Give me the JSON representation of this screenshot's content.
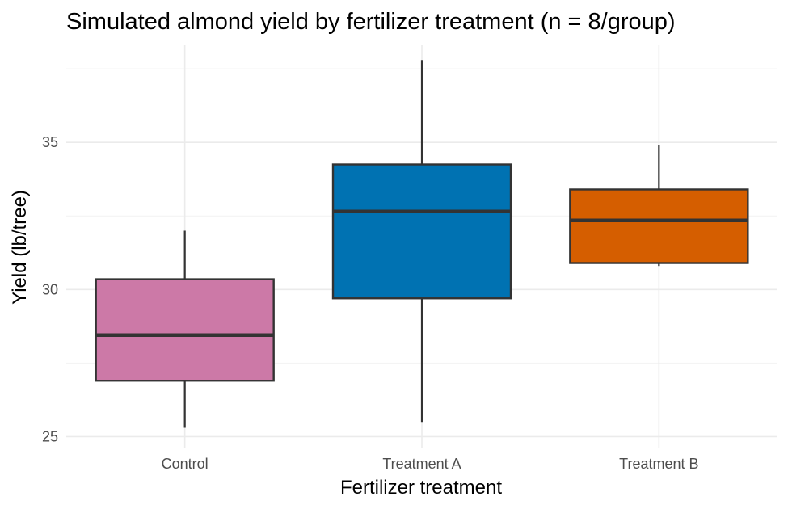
{
  "chart_data": {
    "type": "boxplot",
    "title": "Simulated almond yield by fertilizer treatment (n = 8/group)",
    "xlabel": "Fertilizer treatment",
    "ylabel": "Yield (lb/tree)",
    "ylim": [
      24.6,
      38.3
    ],
    "y_ticks": [
      25,
      30,
      35
    ],
    "y_minor_ticks": [
      27.5,
      32.5,
      37.5
    ],
    "grid": true,
    "legend": "none",
    "categories": [
      "Control",
      "Treatment A",
      "Treatment B"
    ],
    "boxes": [
      {
        "category": "Control",
        "whisker_low": 25.3,
        "q1": 26.9,
        "median": 28.45,
        "q3": 30.35,
        "whisker_high": 32.0,
        "color": "#CC79A7"
      },
      {
        "category": "Treatment A",
        "whisker_low": 25.5,
        "q1": 29.7,
        "median": 32.65,
        "q3": 34.25,
        "whisker_high": 37.8,
        "color": "#0072B2"
      },
      {
        "category": "Treatment B",
        "whisker_low": 30.8,
        "q1": 30.9,
        "median": 32.35,
        "q3": 33.4,
        "whisker_high": 34.9,
        "color": "#D55E00"
      }
    ]
  }
}
